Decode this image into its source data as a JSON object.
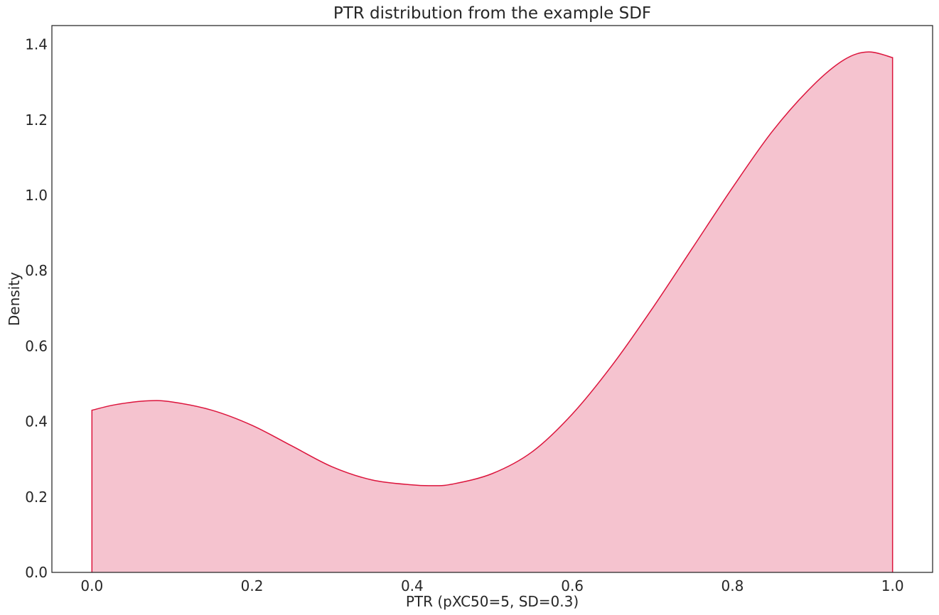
{
  "chart_data": {
    "type": "area",
    "title": "PTR distribution from the example SDF",
    "xlabel": "PTR (pXC50=5, SD=0.3)",
    "ylabel": "Density",
    "xlim": [
      -0.05,
      1.05
    ],
    "ylim": [
      0.0,
      1.45
    ],
    "xticks": [
      0.0,
      0.2,
      0.4,
      0.6,
      0.8,
      1.0
    ],
    "xtick_labels": [
      "0.0",
      "0.2",
      "0.4",
      "0.6",
      "0.8",
      "1.0"
    ],
    "yticks": [
      0.0,
      0.2,
      0.4,
      0.6,
      0.8,
      1.0,
      1.2,
      1.4
    ],
    "ytick_labels": [
      "0.0",
      "0.2",
      "0.4",
      "0.6",
      "0.8",
      "1.0",
      "1.2",
      "1.4"
    ],
    "grid": false,
    "series": [
      {
        "line_color": "#dc143c",
        "fill_color": "#f5c3cf",
        "x": [
          0.0,
          0.03,
          0.07,
          0.1,
          0.15,
          0.2,
          0.25,
          0.3,
          0.35,
          0.4,
          0.425,
          0.45,
          0.5,
          0.55,
          0.6,
          0.65,
          0.7,
          0.75,
          0.8,
          0.85,
          0.9,
          0.94,
          0.97,
          1.0
        ],
        "y": [
          0.43,
          0.445,
          0.455,
          0.452,
          0.43,
          0.39,
          0.335,
          0.28,
          0.245,
          0.232,
          0.23,
          0.234,
          0.262,
          0.32,
          0.42,
          0.55,
          0.7,
          0.86,
          1.02,
          1.17,
          1.29,
          1.36,
          1.38,
          1.365
        ]
      }
    ]
  }
}
